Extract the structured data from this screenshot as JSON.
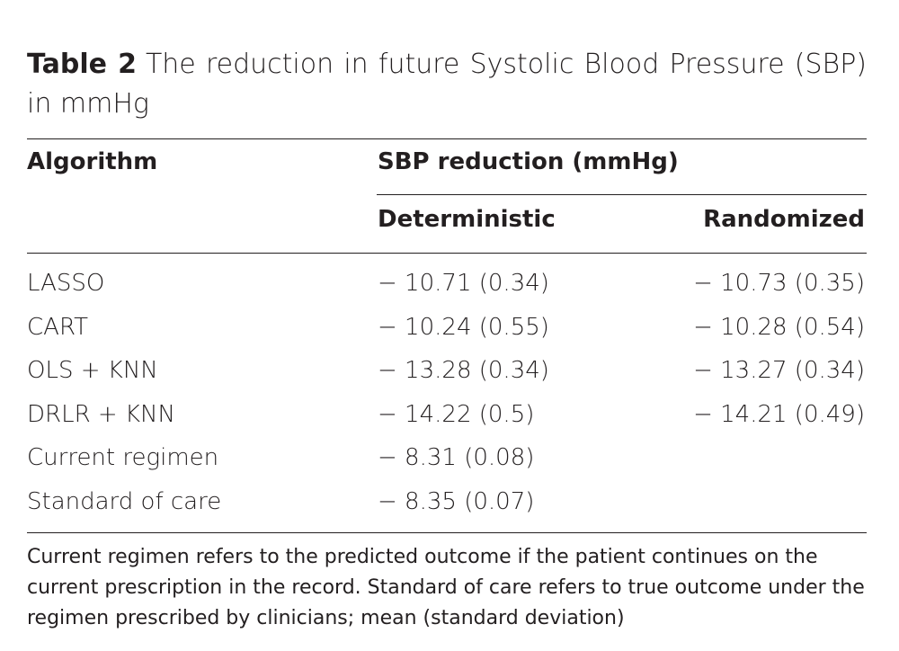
{
  "caption": {
    "label": "Table 2",
    "text": "The reduction in future Systolic Blood Pressure (SBP) in mmHg"
  },
  "headers": {
    "algorithm": "Algorithm",
    "group": "SBP reduction (mmHg)",
    "deterministic": "Deterministic",
    "randomized": "Randomized"
  },
  "rows": [
    {
      "algorithm": "LASSO",
      "deterministic": "− 10.71 (0.34)",
      "randomized": "− 10.73 (0.35)"
    },
    {
      "algorithm": "CART",
      "deterministic": "− 10.24 (0.55)",
      "randomized": "− 10.28 (0.54)"
    },
    {
      "algorithm": "OLS + KNN",
      "deterministic": "− 13.28 (0.34)",
      "randomized": "− 13.27 (0.34)"
    },
    {
      "algorithm": "DRLR + KNN",
      "deterministic": "− 14.22 (0.5)",
      "randomized": "− 14.21 (0.49)"
    },
    {
      "algorithm": "Current regimen",
      "deterministic": "− 8.31 (0.08)",
      "randomized": ""
    },
    {
      "algorithm": "Standard of care",
      "deterministic": "− 8.35 (0.07)",
      "randomized": ""
    }
  ],
  "footnote": "Current regimen refers to the predicted outcome if the patient continues on the current prescription in the record. Standard of care refers to true outcome under the regimen prescribed by clinicians; mean (standard deviation)"
}
